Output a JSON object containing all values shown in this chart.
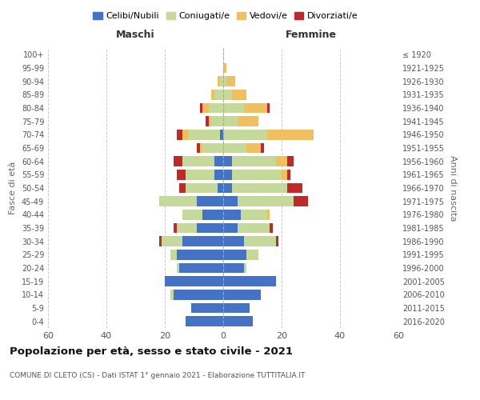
{
  "age_groups": [
    "0-4",
    "5-9",
    "10-14",
    "15-19",
    "20-24",
    "25-29",
    "30-34",
    "35-39",
    "40-44",
    "45-49",
    "50-54",
    "55-59",
    "60-64",
    "65-69",
    "70-74",
    "75-79",
    "80-84",
    "85-89",
    "90-94",
    "95-99",
    "100+"
  ],
  "birth_years": [
    "2016-2020",
    "2011-2015",
    "2006-2010",
    "2001-2005",
    "1996-2000",
    "1991-1995",
    "1986-1990",
    "1981-1985",
    "1976-1980",
    "1971-1975",
    "1966-1970",
    "1961-1965",
    "1956-1960",
    "1951-1955",
    "1946-1950",
    "1941-1945",
    "1936-1940",
    "1931-1935",
    "1926-1930",
    "1921-1925",
    "≤ 1920"
  ],
  "maschi": {
    "celibi": [
      13,
      11,
      17,
      20,
      15,
      16,
      14,
      9,
      7,
      9,
      2,
      3,
      3,
      0,
      1,
      0,
      0,
      0,
      0,
      0,
      0
    ],
    "coniugati": [
      0,
      0,
      1,
      0,
      1,
      2,
      7,
      7,
      7,
      13,
      11,
      10,
      11,
      7,
      11,
      4,
      5,
      3,
      1,
      0,
      0
    ],
    "vedovi": [
      0,
      0,
      0,
      0,
      0,
      0,
      0,
      0,
      0,
      0,
      0,
      0,
      0,
      1,
      2,
      1,
      2,
      1,
      1,
      0,
      0
    ],
    "divorziati": [
      0,
      0,
      0,
      0,
      0,
      0,
      1,
      1,
      0,
      0,
      2,
      3,
      3,
      1,
      2,
      1,
      1,
      0,
      0,
      0,
      0
    ]
  },
  "femmine": {
    "nubili": [
      10,
      9,
      13,
      18,
      7,
      8,
      7,
      5,
      6,
      5,
      3,
      3,
      3,
      0,
      0,
      0,
      0,
      0,
      0,
      0,
      0
    ],
    "coniugate": [
      0,
      0,
      0,
      0,
      1,
      4,
      11,
      11,
      9,
      19,
      19,
      17,
      15,
      8,
      15,
      5,
      7,
      3,
      1,
      0,
      0
    ],
    "vedove": [
      0,
      0,
      0,
      0,
      0,
      0,
      0,
      0,
      1,
      0,
      0,
      2,
      4,
      5,
      16,
      7,
      8,
      5,
      3,
      1,
      0
    ],
    "divorziate": [
      0,
      0,
      0,
      0,
      0,
      0,
      1,
      1,
      0,
      5,
      5,
      1,
      2,
      1,
      0,
      0,
      1,
      0,
      0,
      0,
      0
    ]
  },
  "colors": {
    "celibi": "#4472C4",
    "coniugati": "#C5D99A",
    "vedovi": "#F0C060",
    "divorziati": "#C0292A"
  },
  "title": "Popolazione per età, sesso e stato civile - 2021",
  "subtitle": "COMUNE DI CLETO (CS) - Dati ISTAT 1° gennaio 2021 - Elaborazione TUTTITALIA.IT",
  "xlabel_left": "Maschi",
  "xlabel_right": "Femmine",
  "ylabel_left": "Fasce di età",
  "ylabel_right": "Anni di nascita",
  "xlim": 60,
  "legend_labels": [
    "Celibi/Nubili",
    "Coniugati/e",
    "Vedovi/e",
    "Divorziati/e"
  ],
  "bar_height": 0.75
}
